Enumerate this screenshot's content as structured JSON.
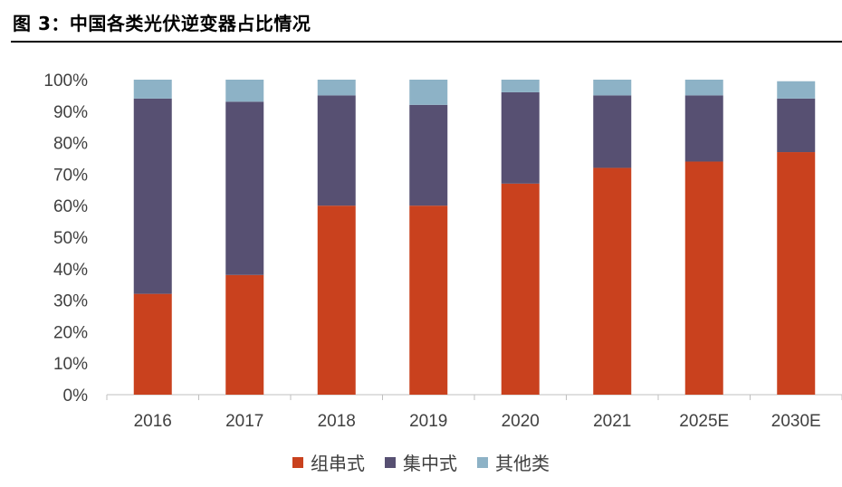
{
  "title": "图 3：中国各类光伏逆变器占比情况",
  "chart_data": {
    "type": "bar",
    "stacked": true,
    "categories": [
      "2016",
      "2017",
      "2018",
      "2019",
      "2020",
      "2021",
      "2025E",
      "2030E"
    ],
    "series": [
      {
        "name": "组串式",
        "color": "#C9411E",
        "values": [
          32,
          38,
          60,
          60,
          67,
          72,
          74,
          77
        ]
      },
      {
        "name": "集中式",
        "color": "#575072",
        "values": [
          62,
          55,
          35,
          32,
          29,
          23,
          21,
          17
        ]
      },
      {
        "name": "其他类",
        "color": "#8DB2C6",
        "values": [
          6,
          7,
          5,
          8,
          4,
          5,
          5,
          5.5
        ]
      }
    ],
    "ylim": [
      0,
      100
    ],
    "yticks": [
      "0%",
      "10%",
      "20%",
      "30%",
      "40%",
      "50%",
      "60%",
      "70%",
      "80%",
      "90%",
      "100%"
    ],
    "legend_position": "bottom",
    "grid": false
  }
}
